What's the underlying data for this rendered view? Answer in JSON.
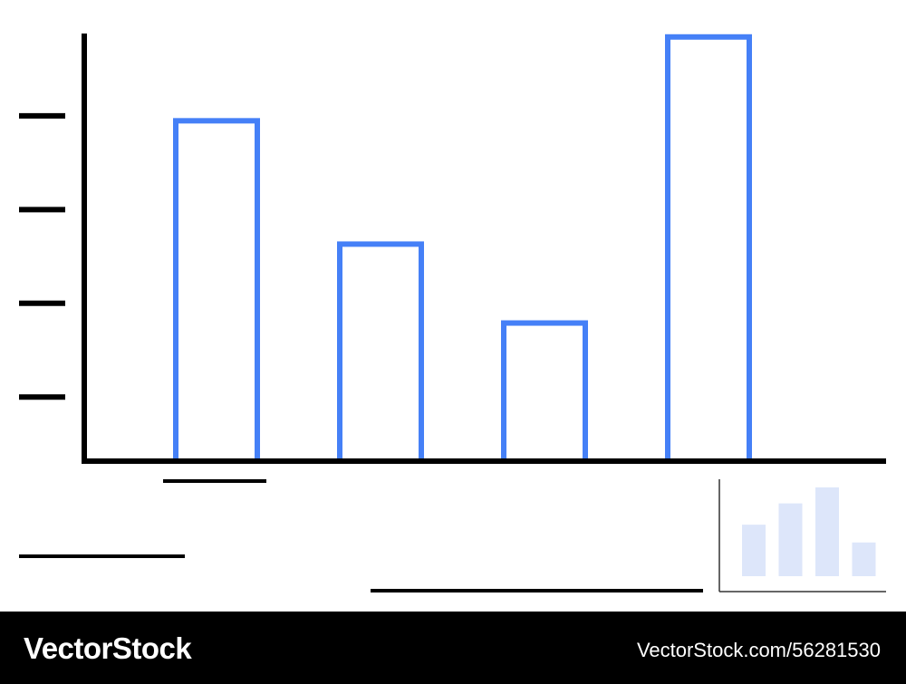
{
  "chart_data": {
    "type": "bar",
    "categories": [
      "",
      "",
      "",
      ""
    ],
    "values": [
      69,
      44,
      28,
      86
    ],
    "ylim": [
      0,
      90
    ],
    "yticks": [
      13,
      32,
      51,
      70
    ],
    "title": "",
    "xlabel": "",
    "ylabel": "",
    "grid": false,
    "bar_style": "outline"
  },
  "inset_chart": {
    "type": "bar",
    "values": [
      58,
      82,
      100,
      38
    ],
    "ylim": [
      0,
      100
    ]
  },
  "colors": {
    "bar_outline": "#4580f7",
    "axis": "#000000",
    "inset_bar": "#dde6fa",
    "inset_axis": "#333333",
    "footer_bg": "#000000",
    "footer_text": "#ffffff"
  },
  "footer": {
    "brand": "VectorStock",
    "image_id": "VectorStock.com/56281530"
  }
}
